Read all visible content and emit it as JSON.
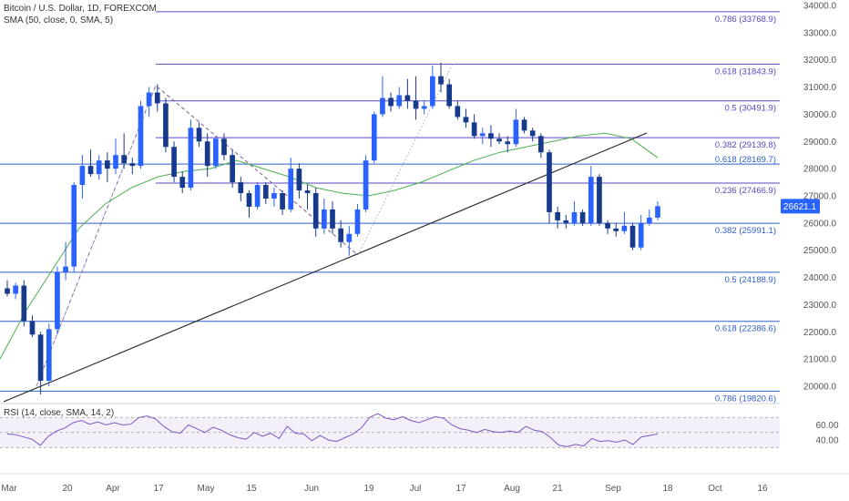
{
  "header": {
    "title": "Bitcoin / U.S. Dollar, 1D, FOREXCOM",
    "sma_label": "SMA (50, close, 0, SMA, 5)",
    "rsi_label": "RSI (14, close, SMA, 14, 2)"
  },
  "price_axis": {
    "ticks": [
      "34000.0",
      "33000.0",
      "32000.0",
      "31000.0",
      "30000.0",
      "29000.0",
      "28000.0",
      "27000.0",
      "26000.0",
      "25000.0",
      "24000.0",
      "23000.0",
      "22000.0",
      "21000.0",
      "20000.0"
    ],
    "current_price": "26621.1"
  },
  "rsi_axis": {
    "ticks": [
      "60.00",
      "40.00"
    ]
  },
  "time_axis": {
    "ticks": [
      "Mar",
      "20",
      "Apr",
      "17",
      "May",
      "15",
      "Jun",
      "19",
      "Jul",
      "17",
      "Aug",
      "21",
      "Sep",
      "18",
      "Oct",
      "16"
    ]
  },
  "fib_upper": [
    {
      "label": "0.786 (33768.9)",
      "price": 33768.9,
      "color": "#5b46c2"
    },
    {
      "label": "0.618 (31843.9)",
      "price": 31843.9,
      "color": "#5b46c2"
    },
    {
      "label": "0.5 (30491.9)",
      "price": 30491.9,
      "color": "#5b46c2"
    },
    {
      "label": "0.382 (29139.8)",
      "price": 29139.8,
      "color": "#5b46c2"
    },
    {
      "label": "0.236 (27466.9)",
      "price": 27466.9,
      "color": "#5b46c2"
    }
  ],
  "fib_lower": [
    {
      "label": "0.618 (28169.7)",
      "price": 28169.7,
      "color": "#2f5fc8"
    },
    {
      "label": "0.382 (25991.1)",
      "price": 25991.1,
      "color": "#2f5fc8"
    },
    {
      "label": "0.5 (24188.9)",
      "price": 24188.9,
      "color": "#2f5fc8"
    },
    {
      "label": "0.618 (22386.6)",
      "price": 22386.6,
      "color": "#2f5fc8"
    },
    {
      "label": "0.786 (19820.6)",
      "price": 19820.6,
      "color": "#2f5fc8"
    }
  ],
  "colors": {
    "up": "#2962ff",
    "down": "#173a8c",
    "sma": "#4caf50",
    "rsi": "#7e57c2",
    "trendline": "#222222",
    "price_badge": "#2962ff"
  },
  "chart_data": {
    "type": "candlestick",
    "symbol": "BTCUSD",
    "timeframe": "1D",
    "ylim": [
      19600,
      34200
    ],
    "candles": [
      {
        "t": "Mar 2",
        "o": 23600,
        "h": 23900,
        "l": 23300,
        "c": 23400
      },
      {
        "t": "Mar 5",
        "o": 23400,
        "h": 23800,
        "l": 23200,
        "c": 23700
      },
      {
        "t": "Mar 7",
        "o": 23700,
        "h": 23900,
        "l": 22200,
        "c": 22400
      },
      {
        "t": "Mar 9",
        "o": 22400,
        "h": 22600,
        "l": 21800,
        "c": 21900
      },
      {
        "t": "Mar 10",
        "o": 21900,
        "h": 22000,
        "l": 19700,
        "c": 20200
      },
      {
        "t": "Mar 12",
        "o": 20200,
        "h": 22300,
        "l": 20000,
        "c": 22100
      },
      {
        "t": "Mar 13",
        "o": 22100,
        "h": 24400,
        "l": 21900,
        "c": 24200
      },
      {
        "t": "Mar 15",
        "o": 24200,
        "h": 25300,
        "l": 23900,
        "c": 24400
      },
      {
        "t": "Mar 17",
        "o": 24400,
        "h": 27500,
        "l": 24200,
        "c": 27400
      },
      {
        "t": "Mar 20",
        "o": 27400,
        "h": 28500,
        "l": 26900,
        "c": 28100
      },
      {
        "t": "Mar 22",
        "o": 28100,
        "h": 28700,
        "l": 27700,
        "c": 27800
      },
      {
        "t": "Mar 25",
        "o": 27800,
        "h": 28500,
        "l": 27600,
        "c": 28300
      },
      {
        "t": "Mar 28",
        "o": 28300,
        "h": 28600,
        "l": 27500,
        "c": 28000
      },
      {
        "t": "Mar 31",
        "o": 28000,
        "h": 29100,
        "l": 27800,
        "c": 28500
      },
      {
        "t": "Apr 4",
        "o": 28500,
        "h": 29300,
        "l": 28000,
        "c": 28200
      },
      {
        "t": "Apr 7",
        "o": 28200,
        "h": 28400,
        "l": 27800,
        "c": 28100
      },
      {
        "t": "Apr 10",
        "o": 28100,
        "h": 30500,
        "l": 28000,
        "c": 30300
      },
      {
        "t": "Apr 13",
        "o": 30300,
        "h": 31000,
        "l": 29900,
        "c": 30800
      },
      {
        "t": "Apr 15",
        "o": 30800,
        "h": 31100,
        "l": 30100,
        "c": 30400
      },
      {
        "t": "Apr 18",
        "o": 30400,
        "h": 30600,
        "l": 28600,
        "c": 28800
      },
      {
        "t": "Apr 20",
        "o": 28800,
        "h": 29000,
        "l": 27500,
        "c": 27700
      },
      {
        "t": "Apr 22",
        "o": 27700,
        "h": 27900,
        "l": 27100,
        "c": 27300
      },
      {
        "t": "Apr 25",
        "o": 27300,
        "h": 29800,
        "l": 27200,
        "c": 29500
      },
      {
        "t": "Apr 27",
        "o": 29500,
        "h": 29700,
        "l": 28800,
        "c": 29000
      },
      {
        "t": "Apr 30",
        "o": 29000,
        "h": 29300,
        "l": 27700,
        "c": 28100
      },
      {
        "t": "May 3",
        "o": 28100,
        "h": 29200,
        "l": 28000,
        "c": 29100
      },
      {
        "t": "May 6",
        "o": 29100,
        "h": 29300,
        "l": 28300,
        "c": 28500
      },
      {
        "t": "May 8",
        "o": 28500,
        "h": 28700,
        "l": 27300,
        "c": 27500
      },
      {
        "t": "May 10",
        "o": 27500,
        "h": 27700,
        "l": 26800,
        "c": 27100
      },
      {
        "t": "May 12",
        "o": 27100,
        "h": 27200,
        "l": 26200,
        "c": 26600
      },
      {
        "t": "May 15",
        "o": 26600,
        "h": 27500,
        "l": 26500,
        "c": 27400
      },
      {
        "t": "May 18",
        "o": 27400,
        "h": 27500,
        "l": 26700,
        "c": 26900
      },
      {
        "t": "May 21",
        "o": 26900,
        "h": 27300,
        "l": 26600,
        "c": 27100
      },
      {
        "t": "May 25",
        "o": 27100,
        "h": 27200,
        "l": 26300,
        "c": 26500
      },
      {
        "t": "May 28",
        "o": 26500,
        "h": 28400,
        "l": 26400,
        "c": 28000
      },
      {
        "t": "May 31",
        "o": 28000,
        "h": 28200,
        "l": 26900,
        "c": 27200
      },
      {
        "t": "Jun 3",
        "o": 27200,
        "h": 27400,
        "l": 26500,
        "c": 27100
      },
      {
        "t": "Jun 6",
        "o": 27100,
        "h": 27300,
        "l": 25500,
        "c": 25800
      },
      {
        "t": "Jun 8",
        "o": 25800,
        "h": 26900,
        "l": 25600,
        "c": 26500
      },
      {
        "t": "Jun 10",
        "o": 26500,
        "h": 26800,
        "l": 25600,
        "c": 25800
      },
      {
        "t": "Jun 13",
        "o": 25800,
        "h": 26100,
        "l": 25100,
        "c": 25300
      },
      {
        "t": "Jun 15",
        "o": 25300,
        "h": 25900,
        "l": 24800,
        "c": 25600
      },
      {
        "t": "Jun 17",
        "o": 25600,
        "h": 26700,
        "l": 25500,
        "c": 26500
      },
      {
        "t": "Jun 20",
        "o": 26500,
        "h": 28500,
        "l": 26400,
        "c": 28300
      },
      {
        "t": "Jun 21",
        "o": 28300,
        "h": 30100,
        "l": 28200,
        "c": 30000
      },
      {
        "t": "Jun 23",
        "o": 30000,
        "h": 31400,
        "l": 29900,
        "c": 30600
      },
      {
        "t": "Jun 26",
        "o": 30600,
        "h": 30800,
        "l": 30100,
        "c": 30300
      },
      {
        "t": "Jun 29",
        "o": 30300,
        "h": 31000,
        "l": 30200,
        "c": 30700
      },
      {
        "t": "Jul 2",
        "o": 30700,
        "h": 31300,
        "l": 30200,
        "c": 30500
      },
      {
        "t": "Jul 6",
        "o": 30500,
        "h": 31400,
        "l": 29800,
        "c": 30200
      },
      {
        "t": "Jul 9",
        "o": 30200,
        "h": 30500,
        "l": 30000,
        "c": 30300
      },
      {
        "t": "Jul 11",
        "o": 30300,
        "h": 31800,
        "l": 30200,
        "c": 31400
      },
      {
        "t": "Jul 13",
        "o": 31400,
        "h": 31900,
        "l": 30800,
        "c": 31100
      },
      {
        "t": "Jul 15",
        "o": 31100,
        "h": 31300,
        "l": 30200,
        "c": 30300
      },
      {
        "t": "Jul 19",
        "o": 30300,
        "h": 30500,
        "l": 29800,
        "c": 29900
      },
      {
        "t": "Jul 22",
        "o": 29900,
        "h": 30200,
        "l": 29500,
        "c": 29700
      },
      {
        "t": "Jul 25",
        "o": 29700,
        "h": 30000,
        "l": 29100,
        "c": 29200
      },
      {
        "t": "Jul 28",
        "o": 29200,
        "h": 29500,
        "l": 28900,
        "c": 29300
      },
      {
        "t": "Aug 1",
        "o": 29300,
        "h": 29600,
        "l": 28800,
        "c": 29100
      },
      {
        "t": "Aug 4",
        "o": 29100,
        "h": 29300,
        "l": 28900,
        "c": 29000
      },
      {
        "t": "Aug 7",
        "o": 29000,
        "h": 29200,
        "l": 28600,
        "c": 28900
      },
      {
        "t": "Aug 9",
        "o": 28900,
        "h": 30200,
        "l": 28800,
        "c": 29800
      },
      {
        "t": "Aug 11",
        "o": 29800,
        "h": 29900,
        "l": 29300,
        "c": 29400
      },
      {
        "t": "Aug 14",
        "o": 29400,
        "h": 29500,
        "l": 29000,
        "c": 29200
      },
      {
        "t": "Aug 16",
        "o": 29200,
        "h": 29300,
        "l": 28400,
        "c": 28600
      },
      {
        "t": "Aug 17",
        "o": 28600,
        "h": 28700,
        "l": 26000,
        "c": 26400
      },
      {
        "t": "Aug 18",
        "o": 26400,
        "h": 26600,
        "l": 25800,
        "c": 26100
      },
      {
        "t": "Aug 21",
        "o": 26100,
        "h": 26300,
        "l": 25800,
        "c": 26000
      },
      {
        "t": "Aug 23",
        "o": 26000,
        "h": 26800,
        "l": 25900,
        "c": 26400
      },
      {
        "t": "Aug 25",
        "o": 26400,
        "h": 26500,
        "l": 25900,
        "c": 26000
      },
      {
        "t": "Aug 29",
        "o": 26000,
        "h": 28100,
        "l": 25900,
        "c": 27700
      },
      {
        "t": "Aug 31",
        "o": 27700,
        "h": 27800,
        "l": 25900,
        "c": 26000
      },
      {
        "t": "Sep 2",
        "o": 26000,
        "h": 26100,
        "l": 25600,
        "c": 25800
      },
      {
        "t": "Sep 5",
        "o": 25800,
        "h": 26000,
        "l": 25500,
        "c": 25700
      },
      {
        "t": "Sep 8",
        "o": 25700,
        "h": 26400,
        "l": 25600,
        "c": 25900
      },
      {
        "t": "Sep 11",
        "o": 25900,
        "h": 26000,
        "l": 25000,
        "c": 25100
      },
      {
        "t": "Sep 12",
        "o": 25100,
        "h": 26300,
        "l": 25000,
        "c": 26000
      },
      {
        "t": "Sep 13",
        "o": 26000,
        "h": 26500,
        "l": 25900,
        "c": 26200
      },
      {
        "t": "Sep 14",
        "o": 26200,
        "h": 26800,
        "l": 26100,
        "c": 26621.1
      }
    ],
    "sma_50": [
      21000,
      22800,
      24300,
      25800,
      26700,
      27300,
      27700,
      27900,
      28000,
      28300,
      28000,
      27700,
      27300,
      27100,
      27000,
      27200,
      27500,
      27900,
      28300,
      28600,
      28800,
      29000,
      29200,
      29300,
      29100,
      28400
    ],
    "rsi": {
      "levels": [
        70,
        50,
        30
      ],
      "values": [
        48,
        47,
        44,
        41,
        33,
        45,
        52,
        56,
        63,
        66,
        61,
        64,
        60,
        63,
        60,
        61,
        70,
        72,
        68,
        58,
        51,
        49,
        60,
        55,
        50,
        57,
        53,
        47,
        43,
        41,
        50,
        45,
        49,
        42,
        58,
        49,
        48,
        39,
        46,
        40,
        38,
        43,
        48,
        56,
        70,
        75,
        69,
        67,
        71,
        66,
        63,
        67,
        71,
        69,
        60,
        55,
        53,
        50,
        54,
        51,
        50,
        52,
        50,
        58,
        53,
        51,
        43,
        33,
        31,
        34,
        32,
        42,
        38,
        39,
        37,
        40,
        34,
        44,
        46,
        48
      ]
    }
  }
}
